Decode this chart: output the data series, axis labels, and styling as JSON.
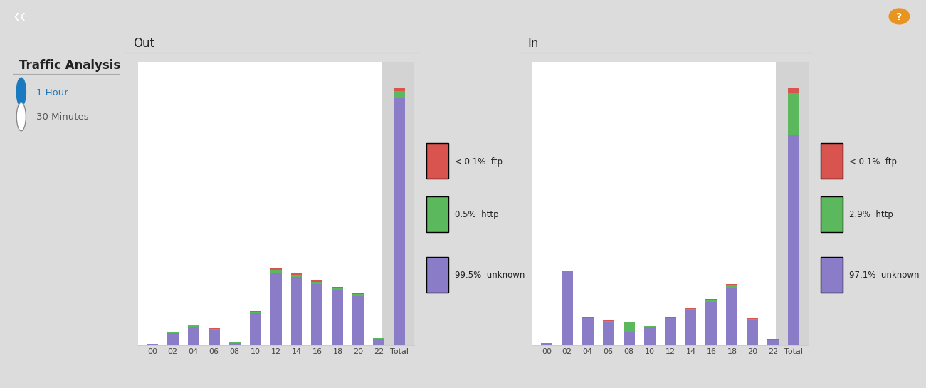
{
  "out_hours": [
    "00",
    "02",
    "04",
    "06",
    "08",
    "10",
    "12",
    "14",
    "16",
    "18",
    "20",
    "22",
    "Total"
  ],
  "out_unknown": [
    1.5,
    14,
    22,
    18,
    3,
    38,
    85,
    80,
    72,
    65,
    58,
    8,
    290
  ],
  "out_http": [
    0.15,
    1.0,
    1.5,
    1.2,
    0.3,
    1.5,
    3.5,
    3.2,
    2.8,
    2.5,
    2.2,
    0.5,
    8.0
  ],
  "out_ftp": [
    0.1,
    0.6,
    0.9,
    0.7,
    0.15,
    1.0,
    2.0,
    1.8,
    1.6,
    1.4,
    1.3,
    0.3,
    4.5
  ],
  "in_hours": [
    "00",
    "02",
    "04",
    "06",
    "08",
    "10",
    "12",
    "14",
    "16",
    "18",
    "20",
    "22",
    "Total"
  ],
  "in_unknown": [
    2.5,
    88,
    32,
    28,
    16,
    22,
    32,
    42,
    52,
    68,
    30,
    7,
    250
  ],
  "in_http": [
    0.15,
    0.8,
    1.5,
    1.2,
    12.0,
    0.8,
    1.2,
    1.6,
    2.2,
    3.0,
    1.2,
    0.3,
    50
  ],
  "in_ftp": [
    0.1,
    0.5,
    0.8,
    0.6,
    0.4,
    0.5,
    0.7,
    0.9,
    1.2,
    1.8,
    0.8,
    0.2,
    7.0
  ],
  "out_legend_items": [
    {
      "color": "#d9534f",
      "label": "< 0.1%  ftp"
    },
    {
      "color": "#5cb85c",
      "label": "0.5%  http"
    },
    {
      "color": "#8b7cc8",
      "label": "99.5%  unknown"
    }
  ],
  "in_legend_items": [
    {
      "color": "#d9534f",
      "label": "< 0.1%  ftp"
    },
    {
      "color": "#5cb85c",
      "label": "2.9%  http"
    },
    {
      "color": "#8b7cc8",
      "label": "97.1%  unknown"
    }
  ],
  "color_ftp": "#d9534f",
  "color_http": "#5cb85c",
  "color_unknown": "#8b7cc8",
  "bg_top": "#7f7f7f",
  "bg_sidebar": "#e8e8e8",
  "bg_panel": "#ffffff",
  "bg_legend": "#d3d3d3",
  "bg_main": "#dcdcdc",
  "title_text": "Traffic Analysis",
  "label_1hour": "1 Hour",
  "label_30min": "30 Minutes",
  "out_title": "Out",
  "in_title": "In"
}
